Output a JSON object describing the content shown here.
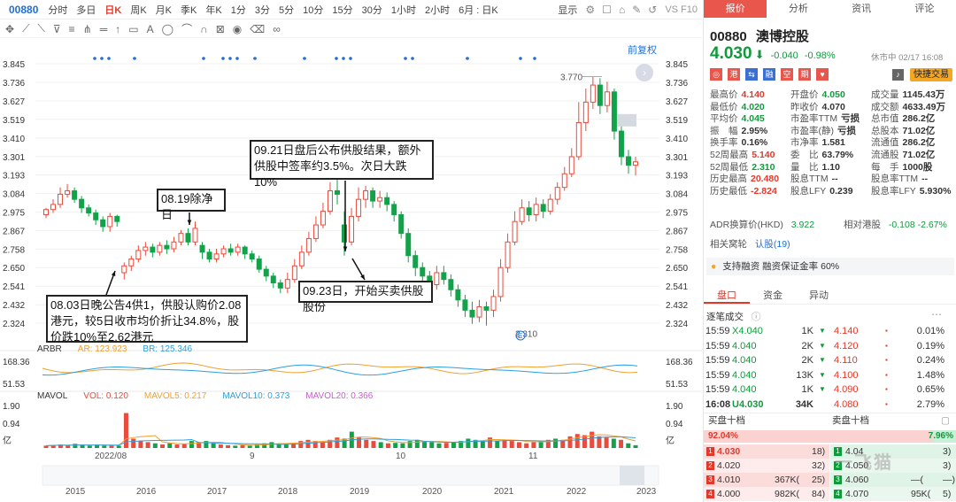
{
  "toolbar": {
    "code": "00880",
    "periods": [
      "分时",
      "多日",
      "日K",
      "周K",
      "月K",
      "季K",
      "年K",
      "1分",
      "3分",
      "5分",
      "10分",
      "15分",
      "30分",
      "1小时",
      "2小时",
      "6月 : 日K"
    ],
    "active_period": "日K",
    "show_label": "显示",
    "right_text": "VS F10"
  },
  "chart": {
    "restore_label": "前复权",
    "y_ticks": [
      "3.845",
      "3.736",
      "3.627",
      "3.519",
      "3.410",
      "3.301",
      "3.193",
      "3.084",
      "2.975",
      "2.867",
      "2.758",
      "2.650",
      "2.541",
      "2.432",
      "2.324"
    ],
    "high_mark": "3.770",
    "low_mark": "2.310",
    "annotations": {
      "a1": "08.03日晚公告4供1，供股认购价2.08港元，较5日收市均价折让34.8%，股价跌10%至2.62港元",
      "a2": "08.19除净日",
      "a3": "09.21日盘后公布供股结果，额外供股中签率约3.5%。次日大跌10%",
      "a4": "09.23日，开始买卖供股股份"
    },
    "marker_e": "E"
  },
  "arbr": {
    "name": "ARBR",
    "ar_label": "AR: ",
    "ar_value": "123.923",
    "br_label": "BR: ",
    "br_value": "125.346",
    "ticks": [
      "168.36",
      "51.53"
    ]
  },
  "mavol": {
    "name": "MAVOL",
    "vol_label": "VOL: ",
    "vol_value": "0.120",
    "ma5_label": "MAVOL5: ",
    "ma5_value": "0.217",
    "ma10_label": "MAVOL10: ",
    "ma10_value": "0.373",
    "ma20_label": "MAVOL20: ",
    "ma20_value": "0.366",
    "ticks": [
      "1.90",
      "0.94",
      "亿"
    ]
  },
  "x_months": [
    "2022/08",
    "9",
    "10",
    "11"
  ],
  "x_years": [
    "2015",
    "2016",
    "2017",
    "2018",
    "2019",
    "2020",
    "2021",
    "2022",
    "2023"
  ],
  "quote": {
    "tabs": [
      "报价",
      "分析",
      "资讯",
      "评论"
    ],
    "code": "00880",
    "name": "澳博控股",
    "price": "4.030",
    "arrow": "⬇",
    "change": "-0.040",
    "pct": "-0.98%",
    "status": "休市中 02/17 16:08",
    "trade_btn": "快捷交易",
    "rows": [
      [
        "最高价",
        "4.140",
        "开盘价",
        "4.050",
        "成交量",
        "1145.43万"
      ],
      [
        "最低价",
        "4.020",
        "昨收价",
        "4.070",
        "成交额",
        "4633.49万"
      ],
      [
        "平均价",
        "4.045",
        "市盈率TTM",
        "亏损",
        "总市值",
        "286.2亿"
      ],
      [
        "振　幅",
        "2.95%",
        "市盈率(静)",
        "亏损",
        "总股本",
        "71.02亿"
      ],
      [
        "换手率",
        "0.16%",
        "市净率",
        "1.581",
        "流通值",
        "286.2亿"
      ],
      [
        "52周最高",
        "5.140",
        "委　比",
        "63.79%",
        "流通股",
        "71.02亿"
      ],
      [
        "52周最低",
        "2.310",
        "量　比",
        "1.10",
        "每　手",
        "1000股"
      ],
      [
        "历史最高",
        "20.480",
        "股息TTM",
        "--",
        "股息率TTM",
        "--"
      ],
      [
        "历史最低",
        "-2.824",
        "股息LFY",
        "0.239",
        "股息率LFY",
        "5.930%"
      ]
    ],
    "adr_label": "ADR换算价(HKD)",
    "adr_value": "3.922",
    "rel_label": "相对港股",
    "rel_value": "-0.108 -2.67%",
    "related_label": "相关窝轮",
    "related_value": "认股(19)",
    "margin_text": "支持融资 融资保证金率 60%"
  },
  "pankou": {
    "tabs": [
      "盘口",
      "资金",
      "异动"
    ],
    "ticks_title": "逐笔成交",
    "ticks": [
      {
        "time": "15:59",
        "price": "X4.040",
        "vol": "1K"
      },
      {
        "time": "15:59",
        "price": "4.040",
        "vol": "2K"
      },
      {
        "time": "15:59",
        "price": "4.040",
        "vol": "2K"
      },
      {
        "time": "15:59",
        "price": "4.040",
        "vol": "13K"
      },
      {
        "time": "15:59",
        "price": "4.040",
        "vol": "1K"
      },
      {
        "time": "16:08",
        "price": "U4.030",
        "vol": "34K"
      }
    ],
    "levels": [
      {
        "price": "4.140",
        "pct": "0.01%"
      },
      {
        "price": "4.120",
        "pct": "0.19%"
      },
      {
        "price": "4.110",
        "pct": "0.24%"
      },
      {
        "price": "4.100",
        "pct": "1.48%"
      },
      {
        "price": "4.090",
        "pct": "0.65%"
      },
      {
        "price": "4.080",
        "pct": "2.79%"
      }
    ],
    "buy_label": "买盘十档",
    "sell_label": "卖盘十档",
    "buy_pct": "92.04%",
    "sell_pct": "7.96%",
    "book": [
      {
        "n": "1",
        "bp": "4.030",
        "bv": "",
        "bc": "18)",
        "sn": "1",
        "sp": "4.04",
        "sv": "",
        "sc": "3)"
      },
      {
        "n": "2",
        "bp": "4.020",
        "bv": "",
        "bc": "32)",
        "sn": "2",
        "sp": "4.050",
        "sv": "",
        "sc": "3)"
      },
      {
        "n": "3",
        "bp": "4.010",
        "bv": "367K(",
        "bc": "25)",
        "sn": "3",
        "sp": "4.060",
        "sv": "—(",
        "sc": "—)"
      },
      {
        "n": "4",
        "bp": "4.000",
        "bv": "982K(",
        "bc": "84)",
        "sn": "4",
        "sp": "4.070",
        "sv": "95K(",
        "sc": "5)"
      }
    ],
    "watermark": "一飞猫"
  }
}
